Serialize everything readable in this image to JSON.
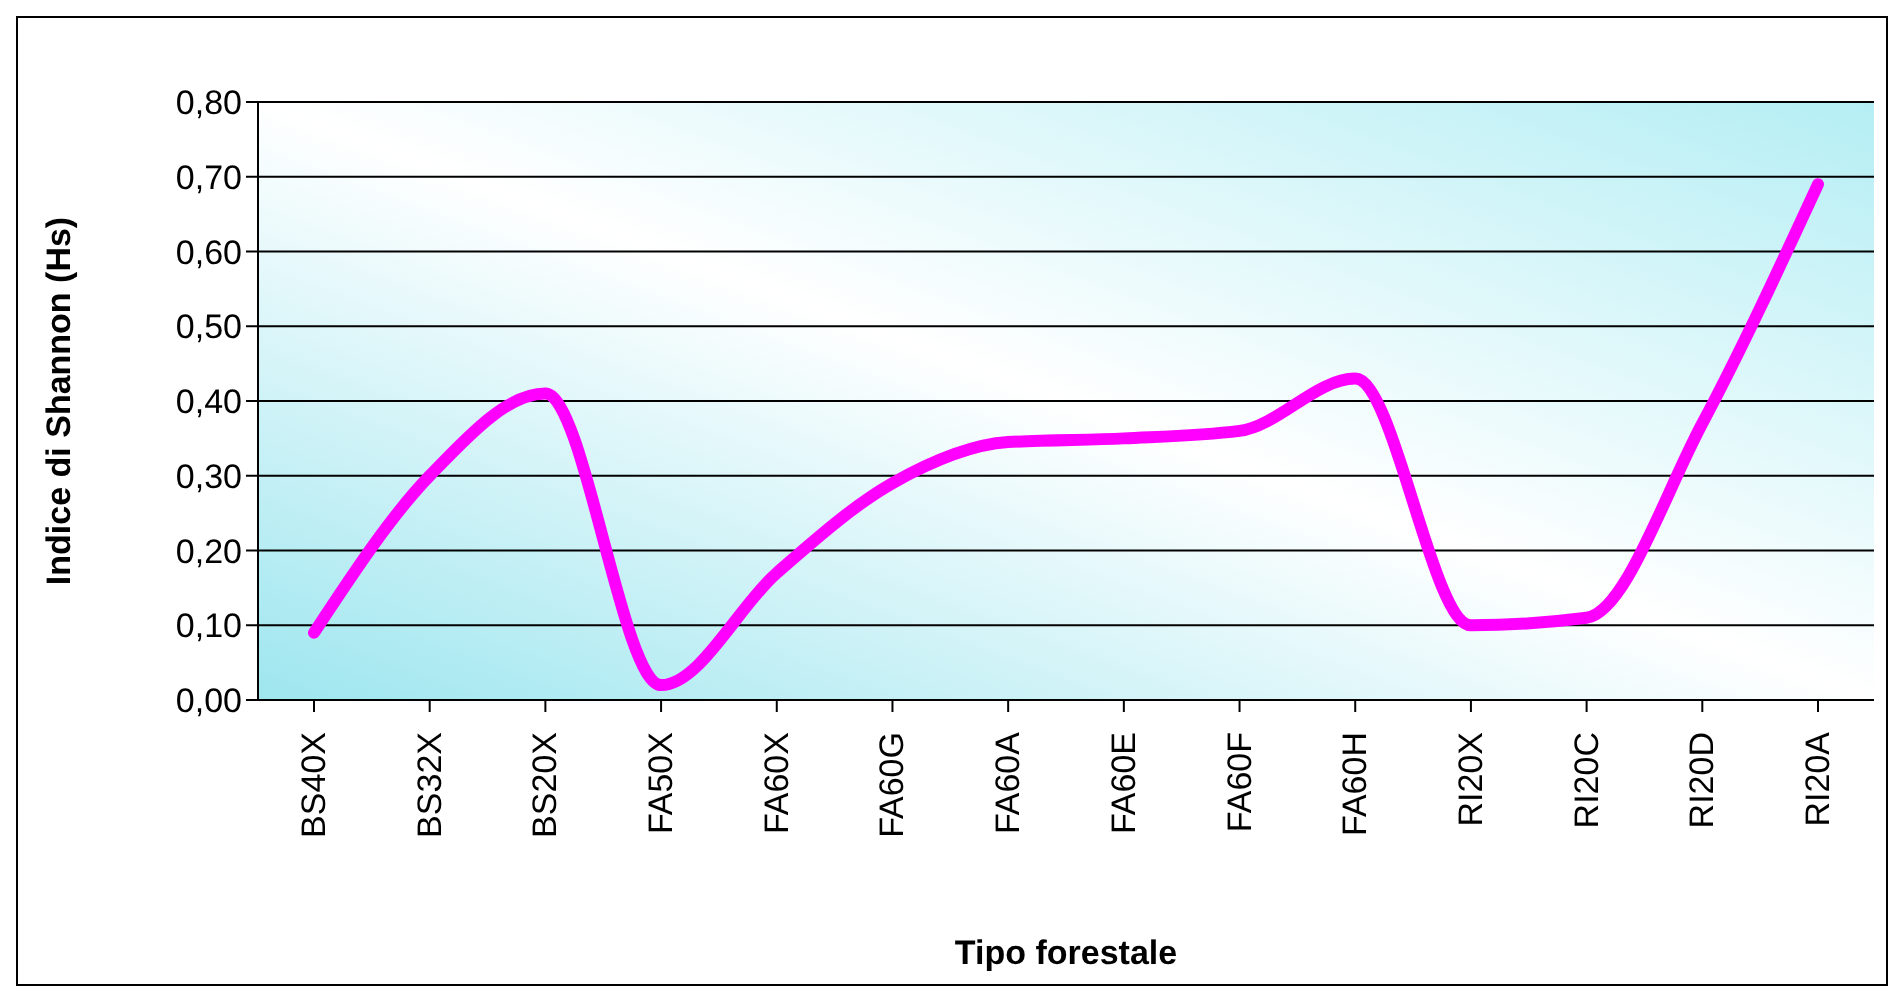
{
  "chart_data": {
    "type": "line",
    "xlabel": "Tipo forestale",
    "ylabel": "Indice di Shannon (Hs)",
    "categories": [
      "BS40X",
      "BS32X",
      "BS20X",
      "FA50X",
      "FA60X",
      "FA60G",
      "FA60A",
      "FA60E",
      "FA60F",
      "FA60H",
      "RI20X",
      "RI20C",
      "RI20D",
      "RI20A"
    ],
    "series": [
      {
        "color": "#ff00ff",
        "values": [
          0.09,
          0.3,
          0.41,
          0.02,
          0.17,
          0.29,
          0.345,
          0.35,
          0.36,
          0.43,
          0.1,
          0.11,
          0.37,
          0.69
        ]
      }
    ],
    "ylim": [
      0,
      0.8
    ],
    "yticks": [
      {
        "value": 0,
        "label": "0,00"
      },
      {
        "value": 0.1,
        "label": "0,10"
      },
      {
        "value": 0.2,
        "label": "0,20"
      },
      {
        "value": 0.3,
        "label": "0,30"
      },
      {
        "value": 0.4,
        "label": "0,40"
      },
      {
        "value": 0.5,
        "label": "0,50"
      },
      {
        "value": 0.6,
        "label": "0,60"
      },
      {
        "value": 0.7,
        "label": "0,70"
      },
      {
        "value": 0.8,
        "label": "0,80"
      }
    ],
    "grid": "y",
    "legend": false,
    "marker": "none",
    "line_style": "solid"
  }
}
